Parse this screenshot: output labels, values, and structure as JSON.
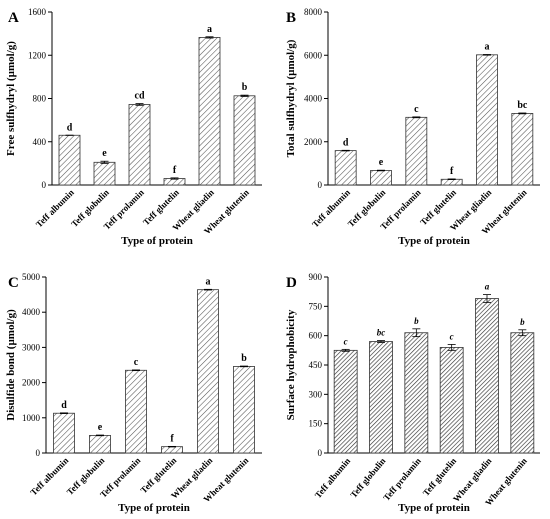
{
  "chart_data": [
    {
      "type": "bar",
      "panel": "A",
      "categories": [
        "Teff albumin",
        "Teff globulin",
        "Teff prolamin",
        "Teff glutelin",
        "Wheat gliadin",
        "Wheat glutenin"
      ],
      "values": [
        460,
        210,
        745,
        60,
        1365,
        825
      ],
      "errors": [
        0,
        10,
        8,
        6,
        6,
        6
      ],
      "significance": [
        "d",
        "e",
        "cd",
        "f",
        "a",
        "b"
      ],
      "xlabel": "Type of protein",
      "ylabel": "Free sulfhydryl (µmol/g)",
      "ylim": [
        0,
        1600
      ],
      "yticks": [
        0,
        400,
        800,
        1200,
        1600
      ],
      "grid": false
    },
    {
      "type": "bar",
      "panel": "B",
      "categories": [
        "Teff albumin",
        "Teff globulin",
        "Teff prolamin",
        "Teff glutelin",
        "Wheat gliadin",
        "Wheat glutenin"
      ],
      "values": [
        1590,
        670,
        3130,
        265,
        6020,
        3310
      ],
      "errors": [
        15,
        15,
        20,
        15,
        15,
        20
      ],
      "significance": [
        "d",
        "e",
        "c",
        "f",
        "a",
        "bc"
      ],
      "xlabel": "Type of protein",
      "ylabel": "Total sulfhydryl (µmol/g)",
      "ylim": [
        0,
        8000
      ],
      "yticks": [
        0,
        2000,
        4000,
        6000,
        8000
      ],
      "grid": false
    },
    {
      "type": "bar",
      "panel": "C",
      "categories": [
        "Teff albumin",
        "Teff globulin",
        "Teff prolamin",
        "Teff glutelin",
        "Wheat gliadin",
        "Wheat glutenin"
      ],
      "values": [
        1130,
        500,
        2350,
        180,
        4640,
        2460
      ],
      "errors": [
        10,
        10,
        10,
        8,
        10,
        10
      ],
      "significance": [
        "d",
        "e",
        "c",
        "f",
        "a",
        "b"
      ],
      "xlabel": "Type of protein",
      "ylabel": "Disulfide bond (µmol/g)",
      "ylim": [
        0,
        5000
      ],
      "yticks": [
        0,
        1000,
        2000,
        3000,
        4000,
        5000
      ],
      "grid": false
    },
    {
      "type": "bar",
      "panel": "D",
      "categories": [
        "Teff albumin",
        "Teff globulin",
        "Teff prolamin",
        "Teff glutelin",
        "Wheat gliadin",
        "Wheat glutenin"
      ],
      "values": [
        525,
        570,
        615,
        540,
        790,
        615
      ],
      "errors": [
        5,
        5,
        20,
        15,
        20,
        15
      ],
      "significance": [
        "c",
        "bc",
        "b",
        "c",
        "a",
        "b"
      ],
      "significance_italic": true,
      "xlabel": "Type of protein",
      "ylabel": "Surface hydrophobicity",
      "ylim": [
        0,
        900
      ],
      "yticks": [
        0,
        150,
        300,
        450,
        600,
        750,
        900
      ],
      "grid": false
    }
  ]
}
